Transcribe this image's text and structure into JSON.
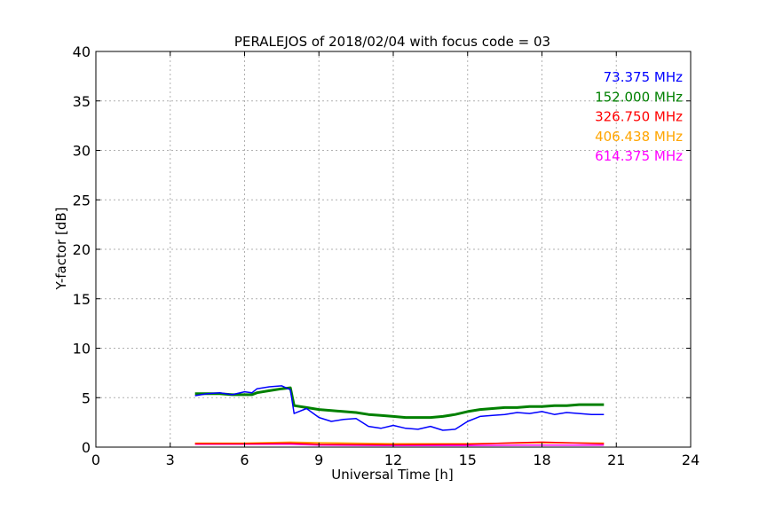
{
  "chart_data": {
    "type": "line",
    "title": "PERALEJOS of 2018/02/04 with focus code = 03",
    "xlabel": "Universal Time [h]",
    "ylabel": "Y-factor [dB]",
    "xlim": [
      0,
      24
    ],
    "ylim": [
      0,
      40
    ],
    "xticks": [
      0,
      3,
      6,
      9,
      12,
      15,
      18,
      21,
      24
    ],
    "yticks": [
      0,
      5,
      10,
      15,
      20,
      25,
      30,
      35,
      40
    ],
    "grid": true,
    "legend_position": "top-right",
    "series": [
      {
        "name": "73.375 MHz",
        "color": "#0000ff",
        "x": [
          4.0,
          4.5,
          5.0,
          5.5,
          6.0,
          6.3,
          6.5,
          7.0,
          7.5,
          7.85,
          8.0,
          8.5,
          9.0,
          9.5,
          10.0,
          10.5,
          11.0,
          11.5,
          12.0,
          12.5,
          13.0,
          13.5,
          14.0,
          14.5,
          15.0,
          15.5,
          16.0,
          16.5,
          17.0,
          17.5,
          18.0,
          18.5,
          19.0,
          19.5,
          20.0,
          20.5
        ],
        "y": [
          5.2,
          5.4,
          5.5,
          5.3,
          5.6,
          5.5,
          5.9,
          6.1,
          6.2,
          5.8,
          3.4,
          3.9,
          3.0,
          2.6,
          2.8,
          2.9,
          2.1,
          1.9,
          2.2,
          1.9,
          1.8,
          2.1,
          1.7,
          1.8,
          2.6,
          3.1,
          3.2,
          3.3,
          3.5,
          3.4,
          3.6,
          3.3,
          3.5,
          3.4,
          3.3,
          3.3
        ]
      },
      {
        "name": "152.000 MHz",
        "color": "#008000",
        "x": [
          4.0,
          4.5,
          5.0,
          5.5,
          6.0,
          6.3,
          6.5,
          7.0,
          7.5,
          7.85,
          8.0,
          8.5,
          9.0,
          9.5,
          10.0,
          10.5,
          11.0,
          11.5,
          12.0,
          12.5,
          13.0,
          13.5,
          14.0,
          14.5,
          15.0,
          15.5,
          16.0,
          16.5,
          17.0,
          17.5,
          18.0,
          18.5,
          19.0,
          19.5,
          20.0,
          20.5
        ],
        "y": [
          5.4,
          5.4,
          5.4,
          5.3,
          5.3,
          5.3,
          5.5,
          5.7,
          5.9,
          6.0,
          4.2,
          4.0,
          3.8,
          3.7,
          3.6,
          3.5,
          3.3,
          3.2,
          3.1,
          3.0,
          3.0,
          3.0,
          3.1,
          3.3,
          3.6,
          3.8,
          3.9,
          4.0,
          4.0,
          4.1,
          4.1,
          4.2,
          4.2,
          4.3,
          4.3,
          4.3
        ]
      },
      {
        "name": "326.750 MHz",
        "color": "#ff0000",
        "x": [
          4.0,
          6.0,
          7.85,
          9.0,
          12.0,
          15.0,
          17.0,
          18.0,
          20.5
        ],
        "y": [
          0.35,
          0.35,
          0.4,
          0.3,
          0.25,
          0.3,
          0.45,
          0.5,
          0.35
        ]
      },
      {
        "name": "406.438 MHz",
        "color": "#ffa500",
        "x": [
          4.0,
          6.0,
          7.85,
          9.0,
          12.0,
          15.0,
          17.0,
          18.0,
          20.5
        ],
        "y": [
          0.4,
          0.4,
          0.5,
          0.45,
          0.35,
          0.35,
          0.4,
          0.45,
          0.4
        ]
      },
      {
        "name": "614.375 MHz",
        "color": "#ff00ff",
        "x": [
          4.0,
          6.0,
          7.85,
          9.0,
          12.0,
          15.0,
          17.0,
          18.0,
          20.5
        ],
        "y": [
          0.3,
          0.3,
          0.3,
          0.2,
          0.15,
          0.15,
          0.2,
          0.2,
          0.2
        ]
      }
    ]
  }
}
